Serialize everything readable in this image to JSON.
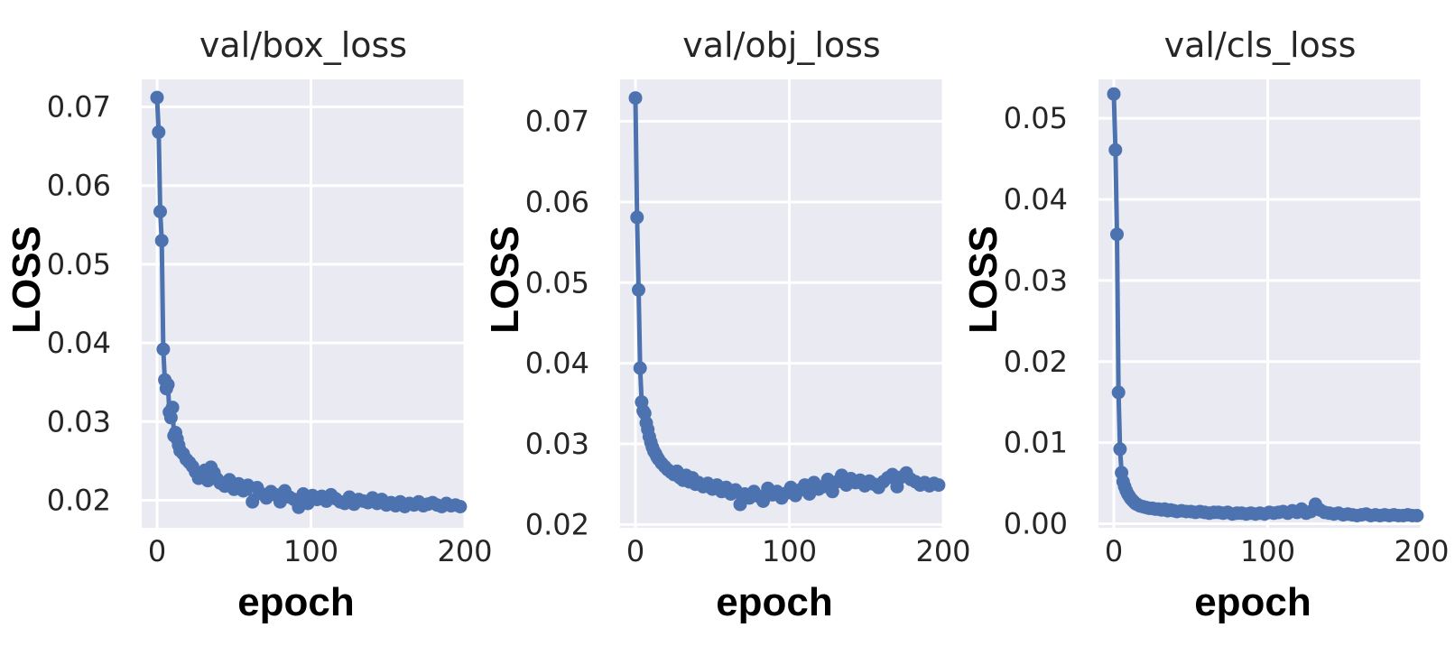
{
  "chart_data": [
    {
      "type": "line",
      "title": "val/box_loss",
      "xlabel": "epoch",
      "ylabel": "LOSS",
      "xlim": [
        -10,
        200
      ],
      "ylim": [
        0.0165,
        0.0735
      ],
      "xticks": [
        0,
        100,
        200
      ],
      "yticks": [
        0.02,
        0.03,
        0.04,
        0.05,
        0.06,
        0.07
      ],
      "ytick_labels": [
        "0.02",
        "0.03",
        "0.04",
        "0.05",
        "0.06",
        "0.07"
      ],
      "grid": true,
      "marker": "circle",
      "colors": {
        "line": "#4c72b0",
        "plot_bg": "#eaeaf2",
        "grid": "#ffffff"
      },
      "series": [
        {
          "x": [
            0,
            1,
            2,
            3,
            4,
            5,
            6,
            7,
            8,
            9,
            10,
            11,
            12,
            13,
            14,
            15,
            17,
            19,
            21,
            23,
            25,
            27,
            29,
            31,
            33,
            35,
            37,
            39,
            41,
            44,
            47,
            50,
            53,
            56,
            59,
            62,
            65,
            68,
            71,
            74,
            77,
            80,
            83,
            86,
            89,
            92,
            95,
            98,
            101,
            104,
            107,
            110,
            113,
            116,
            119,
            122,
            125,
            128,
            131,
            134,
            137,
            140,
            143,
            146,
            149,
            152,
            155,
            158,
            161,
            164,
            167,
            170,
            173,
            176,
            179,
            182,
            185,
            188,
            191,
            194,
            197
          ],
          "y": [
            0.0712,
            0.0668,
            0.0567,
            0.053,
            0.0392,
            0.0353,
            0.0342,
            0.0347,
            0.0312,
            0.0305,
            0.0318,
            0.0282,
            0.0286,
            0.0278,
            0.027,
            0.0263,
            0.0259,
            0.0252,
            0.0248,
            0.0243,
            0.0236,
            0.0228,
            0.0231,
            0.0238,
            0.0225,
            0.0242,
            0.0235,
            0.0227,
            0.0222,
            0.0218,
            0.0226,
            0.0214,
            0.0221,
            0.0212,
            0.0219,
            0.0198,
            0.0216,
            0.0208,
            0.0203,
            0.0211,
            0.0207,
            0.0198,
            0.0212,
            0.0204,
            0.0201,
            0.0191,
            0.0208,
            0.0196,
            0.0206,
            0.0201,
            0.0205,
            0.0199,
            0.0207,
            0.0202,
            0.0198,
            0.0196,
            0.0204,
            0.0195,
            0.0201,
            0.0199,
            0.0197,
            0.0203,
            0.0196,
            0.0201,
            0.0194,
            0.0197,
            0.0193,
            0.0198,
            0.0192,
            0.0196,
            0.0194,
            0.0198,
            0.0193,
            0.0195,
            0.0197,
            0.0194,
            0.0192,
            0.0196,
            0.0193,
            0.0194,
            0.0192
          ]
        }
      ]
    },
    {
      "type": "line",
      "title": "val/obj_loss",
      "xlabel": "epoch",
      "ylabel": "LOSS",
      "xlim": [
        -10,
        200
      ],
      "ylim": [
        0.0196,
        0.0752
      ],
      "xticks": [
        0,
        100,
        200
      ],
      "yticks": [
        0.02,
        0.03,
        0.04,
        0.05,
        0.06,
        0.07
      ],
      "ytick_labels": [
        "0.02",
        "0.03",
        "0.04",
        "0.05",
        "0.06",
        "0.07"
      ],
      "grid": true,
      "marker": "circle",
      "colors": {
        "line": "#4c72b0",
        "plot_bg": "#eaeaf2",
        "grid": "#ffffff"
      },
      "series": [
        {
          "x": [
            0,
            1,
            2,
            3,
            4,
            5,
            6,
            7,
            8,
            9,
            10,
            11,
            12,
            13,
            14,
            15,
            17,
            19,
            21,
            23,
            25,
            27,
            29,
            31,
            33,
            35,
            37,
            39,
            41,
            44,
            47,
            50,
            53,
            56,
            59,
            62,
            65,
            68,
            71,
            74,
            77,
            80,
            83,
            86,
            89,
            92,
            95,
            98,
            101,
            104,
            107,
            110,
            113,
            116,
            119,
            122,
            125,
            128,
            131,
            134,
            137,
            140,
            143,
            146,
            149,
            152,
            155,
            158,
            161,
            164,
            167,
            170,
            173,
            176,
            179,
            182,
            185,
            188,
            191,
            194,
            197
          ],
          "y": [
            0.0729,
            0.0581,
            0.0491,
            0.0394,
            0.0352,
            0.0341,
            0.0338,
            0.0326,
            0.0318,
            0.0309,
            0.0302,
            0.0296,
            0.0291,
            0.0288,
            0.0284,
            0.0281,
            0.0276,
            0.0272,
            0.0268,
            0.0265,
            0.0262,
            0.0266,
            0.0258,
            0.0255,
            0.0261,
            0.0253,
            0.0258,
            0.025,
            0.0252,
            0.0247,
            0.0251,
            0.0244,
            0.0249,
            0.0241,
            0.0246,
            0.0238,
            0.0243,
            0.0225,
            0.0238,
            0.0233,
            0.0241,
            0.0235,
            0.0229,
            0.0245,
            0.0237,
            0.0241,
            0.0233,
            0.0239,
            0.0246,
            0.0236,
            0.0243,
            0.0249,
            0.0238,
            0.0252,
            0.0244,
            0.0247,
            0.0256,
            0.0241,
            0.0253,
            0.0261,
            0.0249,
            0.0257,
            0.0252,
            0.0255,
            0.0248,
            0.0254,
            0.025,
            0.0246,
            0.0253,
            0.0258,
            0.0262,
            0.0247,
            0.0259,
            0.0264,
            0.0256,
            0.0253,
            0.0249,
            0.0252,
            0.0248,
            0.0251,
            0.0249
          ]
        }
      ]
    },
    {
      "type": "line",
      "title": "val/cls_loss",
      "xlabel": "epoch",
      "ylabel": "LOSS",
      "xlim": [
        -10,
        200
      ],
      "ylim": [
        -0.0005,
        0.0548
      ],
      "xticks": [
        0,
        100,
        200
      ],
      "yticks": [
        0.0,
        0.01,
        0.02,
        0.03,
        0.04,
        0.05
      ],
      "ytick_labels": [
        "0.00",
        "0.01",
        "0.02",
        "0.03",
        "0.04",
        "0.05"
      ],
      "grid": true,
      "marker": "circle",
      "colors": {
        "line": "#4c72b0",
        "plot_bg": "#eaeaf2",
        "grid": "#ffffff"
      },
      "series": [
        {
          "x": [
            0,
            1,
            2,
            3,
            4,
            5,
            6,
            7,
            8,
            9,
            10,
            11,
            12,
            13,
            14,
            15,
            17,
            19,
            21,
            23,
            25,
            27,
            29,
            31,
            33,
            35,
            37,
            39,
            41,
            44,
            47,
            50,
            53,
            56,
            59,
            62,
            65,
            68,
            71,
            74,
            77,
            80,
            83,
            86,
            89,
            92,
            95,
            98,
            101,
            104,
            107,
            110,
            113,
            116,
            119,
            122,
            125,
            128,
            131,
            134,
            137,
            140,
            143,
            146,
            149,
            152,
            155,
            158,
            161,
            164,
            167,
            170,
            173,
            176,
            179,
            182,
            185,
            188,
            191,
            194,
            197
          ],
          "y": [
            0.053,
            0.0461,
            0.0357,
            0.0162,
            0.0092,
            0.0063,
            0.0052,
            0.0046,
            0.0041,
            0.0037,
            0.0034,
            0.0031,
            0.0029,
            0.0027,
            0.0025,
            0.0024,
            0.0022,
            0.0021,
            0.002,
            0.0019,
            0.0019,
            0.0018,
            0.0018,
            0.0017,
            0.0018,
            0.0016,
            0.0017,
            0.0016,
            0.0015,
            0.0016,
            0.0015,
            0.0015,
            0.0014,
            0.0015,
            0.0014,
            0.0013,
            0.0014,
            0.0014,
            0.0013,
            0.0014,
            0.0012,
            0.0013,
            0.0013,
            0.0012,
            0.0013,
            0.0012,
            0.0013,
            0.0012,
            0.0014,
            0.0013,
            0.0014,
            0.0015,
            0.0013,
            0.0016,
            0.0014,
            0.0018,
            0.0013,
            0.0015,
            0.0024,
            0.0017,
            0.0014,
            0.0013,
            0.0012,
            0.0013,
            0.0011,
            0.0012,
            0.0011,
            0.001,
            0.0011,
            0.0012,
            0.001,
            0.0011,
            0.001,
            0.0011,
            0.001,
            0.0011,
            0.001,
            0.001,
            0.0011,
            0.001,
            0.001
          ]
        }
      ]
    }
  ]
}
